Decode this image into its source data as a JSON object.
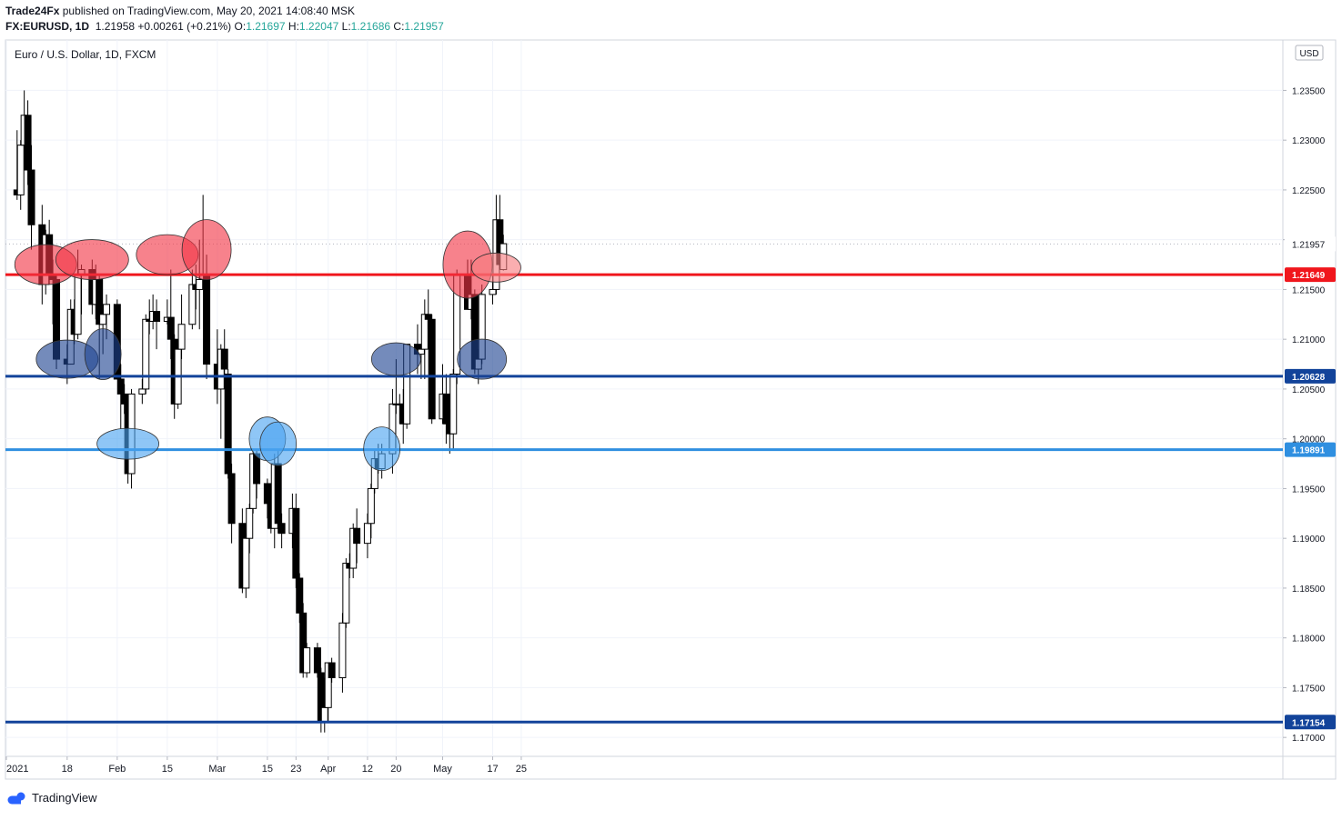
{
  "header": {
    "publisher": "Trade24Fx",
    "published_text": "published on TradingView.com, May 20, 2021 14:08:40 MSK",
    "symbol": "FX:EURUSD, 1D",
    "last": "1.21958",
    "change": "+0.00261 (+0.21%)",
    "o_label": "O:",
    "o_value": "1.21697",
    "h_label": "H:",
    "h_value": "1.22047",
    "l_label": "L:",
    "l_value": "1.21686",
    "c_label": "C:",
    "c_value": "1.21957"
  },
  "footer": {
    "brand": "TradingView"
  },
  "chart_data": {
    "type": "candlestick",
    "title": "Euro / U.S. Dollar, 1D, FXCM",
    "currency": "USD",
    "ylim": [
      1.1675,
      1.2385
    ],
    "y_ticks": [
      "1.23500",
      "1.23000",
      "1.22500",
      "1.22000",
      "1.21500",
      "1.21000",
      "1.20500",
      "1.20000",
      "1.19500",
      "1.19000",
      "1.18500",
      "1.18000",
      "1.17500",
      "1.17000"
    ],
    "x_ticks": [
      {
        "label": "2021",
        "date": "2021-01-01"
      },
      {
        "label": "18",
        "date": "2021-01-18"
      },
      {
        "label": "Feb",
        "date": "2021-02-01"
      },
      {
        "label": "15",
        "date": "2021-02-15"
      },
      {
        "label": "Mar",
        "date": "2021-03-01"
      },
      {
        "label": "15",
        "date": "2021-03-15"
      },
      {
        "label": "23",
        "date": "2021-03-23"
      },
      {
        "label": "Apr",
        "date": "2021-04-01"
      },
      {
        "label": "12",
        "date": "2021-04-12"
      },
      {
        "label": "20",
        "date": "2021-04-20"
      },
      {
        "label": "May",
        "date": "2021-05-03"
      },
      {
        "label": "17",
        "date": "2021-05-17"
      },
      {
        "label": "25",
        "date": "2021-05-25"
      }
    ],
    "levels": [
      {
        "value": 1.21649,
        "label": "1.21649",
        "color": "#f0161c"
      },
      {
        "value": 1.20628,
        "label": "1.20628",
        "color": "#12439a"
      },
      {
        "value": 1.19891,
        "label": "1.19891",
        "color": "#2f8fe0"
      },
      {
        "value": 1.17154,
        "label": "1.17154",
        "color": "#12439a"
      }
    ],
    "current_price": {
      "value": 1.21957,
      "label": "1.21957"
    },
    "candles": [
      [
        "2021-01-04",
        1.225,
        1.231,
        1.224,
        1.2245
      ],
      [
        "2021-01-05",
        1.2245,
        1.23,
        1.223,
        1.2295
      ],
      [
        "2021-01-06",
        1.2295,
        1.235,
        1.227,
        1.2325
      ],
      [
        "2021-01-07",
        1.2325,
        1.234,
        1.2255,
        1.227
      ],
      [
        "2021-01-08",
        1.227,
        1.2295,
        1.219,
        1.2215
      ],
      [
        "2021-01-11",
        1.2215,
        1.2235,
        1.2135,
        1.2155
      ],
      [
        "2021-01-12",
        1.2155,
        1.221,
        1.2145,
        1.2205
      ],
      [
        "2021-01-13",
        1.2205,
        1.222,
        1.2155,
        1.2165
      ],
      [
        "2021-01-14",
        1.2165,
        1.218,
        1.2115,
        1.216
      ],
      [
        "2021-01-15",
        1.216,
        1.2165,
        1.207,
        1.208
      ],
      [
        "2021-01-18",
        1.208,
        1.2095,
        1.2055,
        1.2075
      ],
      [
        "2021-01-19",
        1.2075,
        1.214,
        1.2075,
        1.213
      ],
      [
        "2021-01-20",
        1.213,
        1.214,
        1.2095,
        1.2105
      ],
      [
        "2021-01-21",
        1.2105,
        1.219,
        1.21,
        1.2165
      ],
      [
        "2021-01-22",
        1.2165,
        1.2175,
        1.2125,
        1.217
      ],
      [
        "2021-01-25",
        1.217,
        1.218,
        1.2125,
        1.2135
      ],
      [
        "2021-01-26",
        1.2135,
        1.2175,
        1.212,
        1.216
      ],
      [
        "2021-01-27",
        1.216,
        1.2165,
        1.206,
        1.2115
      ],
      [
        "2021-01-28",
        1.2115,
        1.213,
        1.2085,
        1.2125
      ],
      [
        "2021-01-29",
        1.2125,
        1.2145,
        1.21,
        1.2135
      ],
      [
        "2021-02-01",
        1.2135,
        1.214,
        1.206,
        1.206
      ],
      [
        "2021-02-02",
        1.206,
        1.2075,
        1.201,
        1.2045
      ],
      [
        "2021-02-03",
        1.2045,
        1.2055,
        1.2025,
        1.2035
      ],
      [
        "2021-02-04",
        1.2035,
        1.2045,
        1.1955,
        1.1965
      ],
      [
        "2021-02-05",
        1.1965,
        1.205,
        1.195,
        1.2045
      ],
      [
        "2021-02-08",
        1.2045,
        1.206,
        1.2035,
        1.205
      ],
      [
        "2021-02-09",
        1.205,
        1.2125,
        1.2045,
        1.212
      ],
      [
        "2021-02-10",
        1.212,
        1.214,
        1.2105,
        1.2118
      ],
      [
        "2021-02-11",
        1.2118,
        1.2145,
        1.211,
        1.2128
      ],
      [
        "2021-02-12",
        1.2128,
        1.214,
        1.209,
        1.2118
      ],
      [
        "2021-02-15",
        1.2118,
        1.214,
        1.2115,
        1.2122
      ],
      [
        "2021-02-16",
        1.2122,
        1.217,
        1.208,
        1.21
      ],
      [
        "2021-02-17",
        1.21,
        1.2105,
        1.202,
        1.2035
      ],
      [
        "2021-02-18",
        1.2035,
        1.2095,
        1.203,
        1.209
      ],
      [
        "2021-02-19",
        1.209,
        1.2145,
        1.208,
        1.2115
      ],
      [
        "2021-02-22",
        1.2115,
        1.217,
        1.211,
        1.2155
      ],
      [
        "2021-02-23",
        1.2155,
        1.2175,
        1.213,
        1.215
      ],
      [
        "2021-02-24",
        1.215,
        1.22,
        1.211,
        1.216
      ],
      [
        "2021-02-25",
        1.216,
        1.2245,
        1.215,
        1.2165
      ],
      [
        "2021-02-26",
        1.2165,
        1.2185,
        1.206,
        1.2075
      ],
      [
        "2021-03-01",
        1.2075,
        1.211,
        1.2035,
        1.205
      ],
      [
        "2021-03-02",
        1.205,
        1.2095,
        1.2,
        1.209
      ],
      [
        "2021-03-03",
        1.209,
        1.211,
        1.2065,
        1.207
      ],
      [
        "2021-03-04",
        1.2065,
        1.207,
        1.196,
        1.1965
      ],
      [
        "2021-03-05",
        1.1965,
        1.1975,
        1.1895,
        1.1915
      ],
      [
        "2021-03-08",
        1.1915,
        1.193,
        1.1845,
        1.185
      ],
      [
        "2021-03-09",
        1.185,
        1.1905,
        1.184,
        1.19
      ],
      [
        "2021-03-10",
        1.19,
        1.1935,
        1.1885,
        1.193
      ],
      [
        "2021-03-11",
        1.193,
        1.199,
        1.1925,
        1.1985
      ],
      [
        "2021-03-12",
        1.1985,
        1.199,
        1.194,
        1.1955
      ],
      [
        "2021-03-15",
        1.1955,
        1.196,
        1.192,
        1.1935
      ],
      [
        "2021-03-16",
        1.1935,
        1.1955,
        1.1905,
        1.191
      ],
      [
        "2021-03-17",
        1.191,
        1.1985,
        1.189,
        1.1975
      ],
      [
        "2021-03-18",
        1.1975,
        1.199,
        1.1905,
        1.1915
      ],
      [
        "2021-03-19",
        1.1915,
        1.1925,
        1.189,
        1.1905
      ],
      [
        "2021-03-22",
        1.1905,
        1.1945,
        1.189,
        1.193
      ],
      [
        "2021-03-23",
        1.193,
        1.1945,
        1.185,
        1.186
      ],
      [
        "2021-03-24",
        1.186,
        1.1865,
        1.1815,
        1.1825
      ],
      [
        "2021-03-25",
        1.1825,
        1.1835,
        1.176,
        1.1765
      ],
      [
        "2021-03-26",
        1.1765,
        1.1795,
        1.176,
        1.179
      ],
      [
        "2021-03-29",
        1.179,
        1.1795,
        1.176,
        1.1765
      ],
      [
        "2021-03-30",
        1.1765,
        1.177,
        1.1705,
        1.1715
      ],
      [
        "2021-03-31",
        1.1715,
        1.176,
        1.1705,
        1.173
      ],
      [
        "2021-04-01",
        1.173,
        1.1775,
        1.1715,
        1.1775
      ],
      [
        "2021-04-02",
        1.1775,
        1.178,
        1.1755,
        1.176
      ],
      [
        "2021-04-05",
        1.176,
        1.1825,
        1.1745,
        1.1815
      ],
      [
        "2021-04-06",
        1.1815,
        1.188,
        1.181,
        1.1875
      ],
      [
        "2021-04-07",
        1.1875,
        1.1885,
        1.186,
        1.187
      ],
      [
        "2021-04-08",
        1.187,
        1.1915,
        1.186,
        1.191
      ],
      [
        "2021-04-09",
        1.191,
        1.193,
        1.1875,
        1.1895
      ],
      [
        "2021-04-12",
        1.1895,
        1.1925,
        1.188,
        1.1915
      ],
      [
        "2021-04-13",
        1.1915,
        1.1955,
        1.19,
        1.195
      ],
      [
        "2021-04-14",
        1.195,
        1.199,
        1.1945,
        1.198
      ],
      [
        "2021-04-15",
        1.198,
        1.1995,
        1.1965,
        1.197
      ],
      [
        "2021-04-16",
        1.197,
        1.1995,
        1.196,
        1.1985
      ],
      [
        "2021-04-19",
        1.1985,
        1.205,
        1.1965,
        1.2035
      ],
      [
        "2021-04-20",
        1.2035,
        1.208,
        1.2025,
        1.2035
      ],
      [
        "2021-04-21",
        1.2035,
        1.2045,
        1.2015,
        1.2035
      ],
      [
        "2021-04-22",
        1.2035,
        1.205,
        1.1995,
        1.2015
      ],
      [
        "2021-04-23",
        1.2015,
        1.2095,
        1.201,
        1.2095
      ],
      [
        "2021-04-26",
        1.2095,
        1.2115,
        1.2065,
        1.2085
      ],
      [
        "2021-04-27",
        1.2085,
        1.2095,
        1.206,
        1.209
      ],
      [
        "2021-04-28",
        1.209,
        1.214,
        1.206,
        1.2125
      ],
      [
        "2021-04-29",
        1.2125,
        1.215,
        1.211,
        1.212
      ],
      [
        "2021-04-30",
        1.212,
        1.2125,
        1.2015,
        1.202
      ],
      [
        "2021-05-03",
        1.202,
        1.2075,
        1.2015,
        1.2045
      ],
      [
        "2021-05-04",
        1.2045,
        1.2065,
        1.1995,
        1.2015
      ],
      [
        "2021-05-05",
        1.2015,
        1.203,
        1.1985,
        1.2005
      ],
      [
        "2021-05-06",
        1.2005,
        1.207,
        1.199,
        1.2065
      ],
      [
        "2021-05-07",
        1.2065,
        1.217,
        1.2055,
        1.2165
      ],
      [
        "2021-05-10",
        1.2165,
        1.218,
        1.213,
        1.213
      ],
      [
        "2021-05-11",
        1.213,
        1.218,
        1.212,
        1.2145
      ],
      [
        "2021-05-12",
        1.2145,
        1.215,
        1.2065,
        1.207
      ],
      [
        "2021-05-13",
        1.207,
        1.209,
        1.2055,
        1.208
      ],
      [
        "2021-05-14",
        1.208,
        1.2155,
        1.2075,
        1.2145
      ],
      [
        "2021-05-17",
        1.2145,
        1.2165,
        1.2135,
        1.215
      ],
      [
        "2021-05-18",
        1.215,
        1.2245,
        1.2145,
        1.222
      ],
      [
        "2021-05-19",
        1.222,
        1.2245,
        1.217,
        1.2175
      ],
      [
        "2021-05-20",
        1.217,
        1.2205,
        1.2169,
        1.2196
      ]
    ],
    "annotations": [
      {
        "date": "2021-01-12",
        "price": 1.2175,
        "color": "#f23645"
      },
      {
        "date": "2021-01-25",
        "price": 1.218,
        "color": "#f23645"
      },
      {
        "date": "2021-02-15",
        "price": 1.2185,
        "color": "#f23645"
      },
      {
        "date": "2021-02-26",
        "price": 1.219,
        "color": "#f23645"
      },
      {
        "date": "2021-05-10",
        "price": 1.2175,
        "color": "#f23645"
      },
      {
        "date": "2021-05-18",
        "price": 1.2172,
        "color": "#f77c80"
      },
      {
        "date": "2021-01-18",
        "price": 1.208,
        "color": "#1e4391"
      },
      {
        "date": "2021-01-28",
        "price": 1.2085,
        "color": "#1e4391"
      },
      {
        "date": "2021-04-20",
        "price": 1.208,
        "color": "#1e4391"
      },
      {
        "date": "2021-05-14",
        "price": 1.208,
        "color": "#1e4391"
      },
      {
        "date": "2021-02-04",
        "price": 1.1995,
        "color": "#4aa3f0"
      },
      {
        "date": "2021-03-15",
        "price": 1.2,
        "color": "#4aa3f0"
      },
      {
        "date": "2021-03-18",
        "price": 1.1995,
        "color": "#4aa3f0"
      },
      {
        "date": "2021-04-16",
        "price": 1.199,
        "color": "#4aa3f0"
      }
    ],
    "grid": true
  }
}
